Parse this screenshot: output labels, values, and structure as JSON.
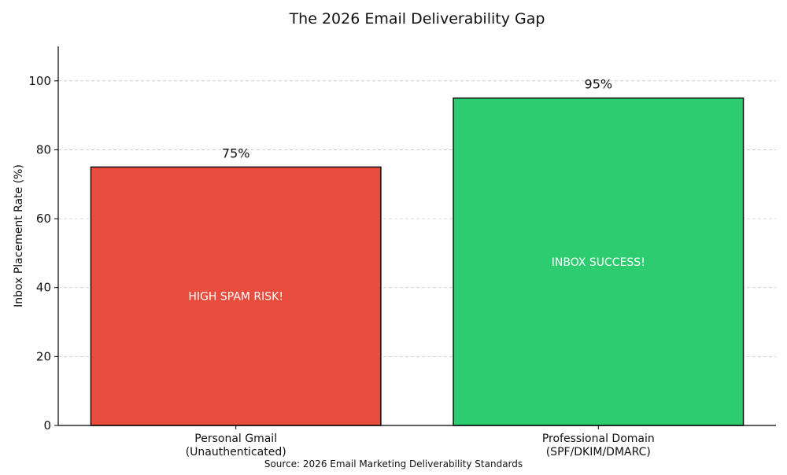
{
  "chart_data": {
    "type": "bar",
    "title": "The 2026 Email Deliverability Gap",
    "xlabel": "",
    "ylabel": "Inbox Placement Rate (%)",
    "ylim": [
      0,
      110
    ],
    "yticks": [
      0,
      20,
      40,
      60,
      80,
      100
    ],
    "grid": "y-dashed",
    "categories": [
      "Personal Gmail\n(Unauthenticated)",
      "Professional Domain\n(SPF/DKIM/DMARC)"
    ],
    "values": [
      75,
      95
    ],
    "data_labels": [
      "75%",
      "95%"
    ],
    "bar_annotations": [
      "HIGH SPAM RISK!",
      "INBOX SUCCESS!"
    ],
    "colors": [
      "#e74c3c",
      "#2ecc71"
    ],
    "source": "Source: 2026 Email Marketing Deliverability Standards"
  }
}
